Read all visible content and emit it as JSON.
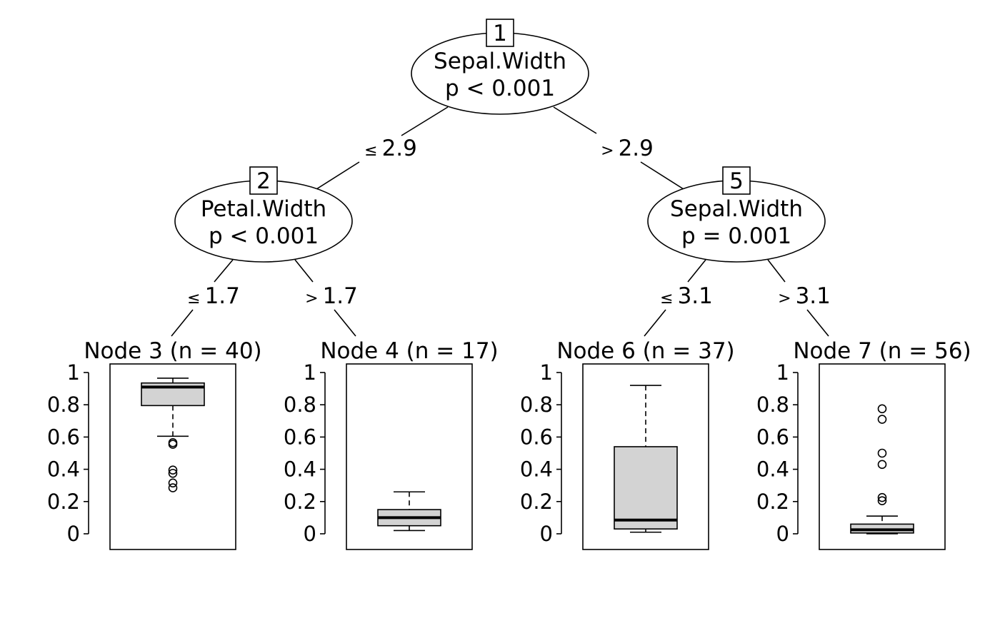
{
  "inner_nodes": [
    {
      "id": "1",
      "variable": "Sepal.Width",
      "pvalue": "p < 0.001"
    },
    {
      "id": "2",
      "variable": "Petal.Width",
      "pvalue": "p < 0.001"
    },
    {
      "id": "5",
      "variable": "Sepal.Width",
      "pvalue": "p = 0.001"
    }
  ],
  "edges": [
    {
      "from": "1",
      "to": "2",
      "label_sym": "≤",
      "label_val": "2.9"
    },
    {
      "from": "1",
      "to": "5",
      "label_sym": ">",
      "label_val": "2.9"
    },
    {
      "from": "2",
      "to": "3",
      "label_sym": "≤",
      "label_val": "1.7"
    },
    {
      "from": "2",
      "to": "4",
      "label_sym": ">",
      "label_val": "1.7"
    },
    {
      "from": "5",
      "to": "6",
      "label_sym": "≤",
      "label_val": "3.1"
    },
    {
      "from": "5",
      "to": "7",
      "label_sym": ">",
      "label_val": "3.1"
    }
  ],
  "terminal_nodes": [
    {
      "id": "3",
      "title": "Node 3 (n = 40)",
      "q1": 0.795,
      "median": 0.91,
      "q3": 0.935,
      "whisker_low": 0.605,
      "whisker_high": 0.965,
      "outliers": [
        0.555,
        0.565,
        0.395,
        0.375,
        0.315,
        0.285
      ]
    },
    {
      "id": "4",
      "title": "Node 4 (n = 17)",
      "q1": 0.05,
      "median": 0.1,
      "q3": 0.15,
      "whisker_low": 0.02,
      "whisker_high": 0.26,
      "outliers": []
    },
    {
      "id": "6",
      "title": "Node 6 (n = 37)",
      "q1": 0.03,
      "median": 0.085,
      "q3": 0.54,
      "whisker_low": 0.01,
      "whisker_high": 0.92,
      "outliers": []
    },
    {
      "id": "7",
      "title": "Node 7 (n = 56)",
      "q1": 0.005,
      "median": 0.025,
      "q3": 0.06,
      "whisker_low": 0.0,
      "whisker_high": 0.11,
      "outliers": [
        0.775,
        0.71,
        0.5,
        0.43,
        0.225,
        0.205
      ]
    }
  ],
  "y_axis": {
    "range": [
      0,
      1
    ],
    "tick_values": [
      0,
      0.2,
      0.4,
      0.6,
      0.8,
      1
    ],
    "tick_labels": [
      "0",
      "0.2",
      "0.4",
      "0.6",
      "0.8",
      "1"
    ]
  }
}
